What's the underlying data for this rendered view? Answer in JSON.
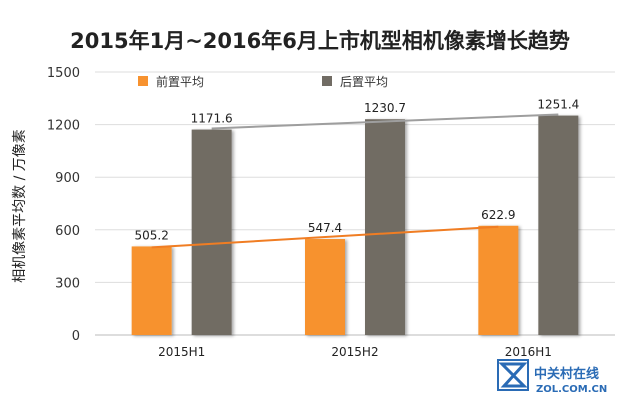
{
  "chart_data": {
    "type": "bar",
    "title": "2015年1月~2016年6月上市机型相机像素增长趋势",
    "ylabel": "相机像素平均数 / 万像素",
    "xlabel": "",
    "categories": [
      "2015H1",
      "2015H2",
      "2016H1"
    ],
    "series": [
      {
        "name": "前置平均",
        "values": [
          505.2,
          547.4,
          622.9
        ],
        "color": "#f7922f"
      },
      {
        "name": "后置平均",
        "values": [
          1171.6,
          1230.7,
          1251.4
        ],
        "color": "#716c64"
      }
    ],
    "trendlines": [
      {
        "series": "前置平均",
        "color": "#f07d23"
      },
      {
        "series": "后置平均",
        "color": "#9e9e9e"
      }
    ],
    "ylim": [
      0,
      1500
    ],
    "yticks": [
      0,
      300,
      600,
      900,
      1200,
      1500
    ],
    "grid": true,
    "legend": "top"
  },
  "watermark": {
    "line1": "中关村在线",
    "line2": "ZOL.COM.CN",
    "icon": "zol-logo-icon"
  }
}
